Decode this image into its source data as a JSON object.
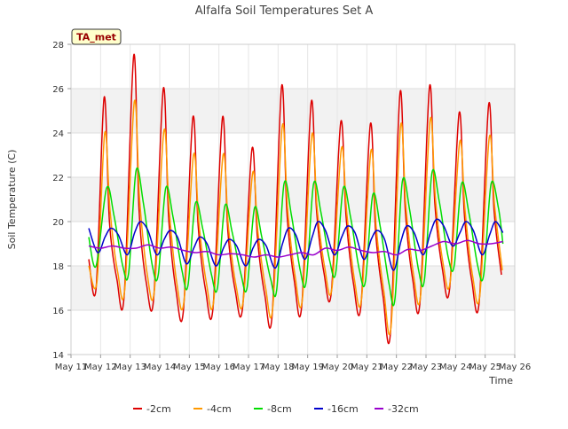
{
  "chart_data": {
    "type": "line",
    "title": "Alfalfa Soil Temperatures Set A",
    "xlabel": "Time",
    "ylabel": "Soil Temperature (C)",
    "badge": "TA_met",
    "ylim": [
      14,
      28
    ],
    "yticks": [
      14,
      16,
      18,
      20,
      22,
      24,
      26,
      28
    ],
    "xlim": [
      0,
      15
    ],
    "xticks": [
      {
        "v": 0,
        "label": "May 11"
      },
      {
        "v": 1,
        "label": "May 12"
      },
      {
        "v": 2,
        "label": "May 13"
      },
      {
        "v": 3,
        "label": "May 14"
      },
      {
        "v": 4,
        "label": "May 15"
      },
      {
        "v": 5,
        "label": "May 16"
      },
      {
        "v": 6,
        "label": "May 17"
      },
      {
        "v": 7,
        "label": "May 18"
      },
      {
        "v": 8,
        "label": "May 19"
      },
      {
        "v": 9,
        "label": "May 20"
      },
      {
        "v": 10,
        "label": "May 21"
      },
      {
        "v": 11,
        "label": "May 22"
      },
      {
        "v": 12,
        "label": "May 23"
      },
      {
        "v": 13,
        "label": "May 24"
      },
      {
        "v": 14,
        "label": "May 25"
      },
      {
        "v": 15,
        "label": "May 26"
      }
    ],
    "x_unit": "days since May 11",
    "grid": true,
    "legend_position": "bottom",
    "series": [
      {
        "name": "-2cm",
        "color": "#dd0000",
        "points": [
          [
            0.6,
            18.3
          ],
          [
            0.85,
            17.0
          ],
          [
            1.12,
            25.6
          ],
          [
            1.3,
            20.0
          ],
          [
            1.55,
            17.4
          ],
          [
            1.8,
            16.7
          ],
          [
            2.12,
            27.5
          ],
          [
            2.3,
            20.5
          ],
          [
            2.55,
            17.2
          ],
          [
            2.8,
            16.6
          ],
          [
            3.12,
            26.0
          ],
          [
            3.3,
            20.2
          ],
          [
            3.55,
            16.9
          ],
          [
            3.8,
            16.0
          ],
          [
            4.12,
            24.7
          ],
          [
            4.3,
            19.8
          ],
          [
            4.55,
            16.9
          ],
          [
            4.8,
            16.1
          ],
          [
            5.12,
            24.7
          ],
          [
            5.3,
            19.6
          ],
          [
            5.55,
            16.9
          ],
          [
            5.8,
            16.1
          ],
          [
            6.12,
            23.3
          ],
          [
            6.3,
            19.3
          ],
          [
            6.55,
            16.7
          ],
          [
            6.8,
            15.8
          ],
          [
            7.12,
            26.1
          ],
          [
            7.3,
            20.4
          ],
          [
            7.55,
            17.3
          ],
          [
            7.8,
            16.2
          ],
          [
            8.12,
            25.4
          ],
          [
            8.3,
            20.5
          ],
          [
            8.55,
            17.7
          ],
          [
            8.8,
            16.8
          ],
          [
            9.12,
            24.5
          ],
          [
            9.3,
            20.2
          ],
          [
            9.55,
            17.2
          ],
          [
            9.8,
            16.2
          ],
          [
            10.12,
            24.4
          ],
          [
            10.3,
            19.5
          ],
          [
            10.55,
            16.6
          ],
          [
            10.8,
            15.0
          ],
          [
            11.12,
            25.8
          ],
          [
            11.3,
            20.5
          ],
          [
            11.55,
            17.4
          ],
          [
            11.8,
            16.4
          ],
          [
            12.12,
            26.1
          ],
          [
            12.3,
            20.8
          ],
          [
            12.55,
            17.9
          ],
          [
            12.8,
            17.0
          ],
          [
            13.12,
            24.9
          ],
          [
            13.3,
            20.3
          ],
          [
            13.55,
            17.3
          ],
          [
            13.8,
            16.4
          ],
          [
            14.12,
            25.3
          ],
          [
            14.3,
            20.5
          ],
          [
            14.55,
            17.6
          ]
        ]
      },
      {
        "name": "-4cm",
        "color": "#ff9900",
        "points": [
          [
            0.6,
            18.0
          ],
          [
            0.88,
            17.3
          ],
          [
            1.14,
            24.0
          ],
          [
            1.32,
            20.5
          ],
          [
            1.58,
            17.7
          ],
          [
            1.82,
            17.0
          ],
          [
            2.14,
            25.4
          ],
          [
            2.32,
            21.0
          ],
          [
            2.58,
            17.6
          ],
          [
            2.82,
            16.9
          ],
          [
            3.14,
            24.1
          ],
          [
            3.32,
            20.5
          ],
          [
            3.58,
            17.2
          ],
          [
            3.82,
            16.4
          ],
          [
            4.14,
            23.0
          ],
          [
            4.32,
            20.0
          ],
          [
            4.58,
            17.2
          ],
          [
            4.82,
            16.4
          ],
          [
            5.14,
            23.0
          ],
          [
            5.32,
            19.8
          ],
          [
            5.58,
            17.1
          ],
          [
            5.82,
            16.4
          ],
          [
            6.14,
            22.2
          ],
          [
            6.32,
            19.5
          ],
          [
            6.58,
            17.0
          ],
          [
            6.82,
            16.1
          ],
          [
            7.14,
            24.3
          ],
          [
            7.32,
            20.6
          ],
          [
            7.58,
            17.5
          ],
          [
            7.82,
            16.5
          ],
          [
            8.14,
            23.9
          ],
          [
            8.32,
            20.6
          ],
          [
            8.58,
            17.9
          ],
          [
            8.82,
            17.0
          ],
          [
            9.14,
            23.3
          ],
          [
            9.32,
            20.4
          ],
          [
            9.58,
            17.4
          ],
          [
            9.82,
            16.5
          ],
          [
            10.14,
            23.2
          ],
          [
            10.32,
            19.7
          ],
          [
            10.58,
            16.8
          ],
          [
            10.82,
            15.3
          ],
          [
            11.14,
            24.3
          ],
          [
            11.32,
            20.7
          ],
          [
            11.58,
            17.6
          ],
          [
            11.82,
            16.7
          ],
          [
            12.14,
            24.6
          ],
          [
            12.32,
            21.0
          ],
          [
            12.58,
            18.1
          ],
          [
            12.82,
            17.3
          ],
          [
            13.14,
            23.6
          ],
          [
            13.32,
            20.5
          ],
          [
            13.58,
            17.5
          ],
          [
            13.82,
            16.7
          ],
          [
            14.14,
            23.8
          ],
          [
            14.32,
            20.7
          ],
          [
            14.58,
            17.8
          ]
        ]
      },
      {
        "name": "-8cm",
        "color": "#00dd00",
        "points": [
          [
            0.6,
            19.3
          ],
          [
            0.85,
            18.0
          ],
          [
            1.2,
            21.5
          ],
          [
            1.45,
            20.3
          ],
          [
            1.75,
            18.0
          ],
          [
            1.95,
            17.7
          ],
          [
            2.2,
            22.3
          ],
          [
            2.45,
            20.8
          ],
          [
            2.75,
            18.0
          ],
          [
            2.95,
            17.6
          ],
          [
            3.2,
            21.5
          ],
          [
            3.45,
            20.2
          ],
          [
            3.75,
            17.8
          ],
          [
            3.95,
            17.1
          ],
          [
            4.2,
            20.8
          ],
          [
            4.45,
            19.7
          ],
          [
            4.75,
            17.6
          ],
          [
            4.95,
            17.0
          ],
          [
            5.2,
            20.7
          ],
          [
            5.45,
            19.5
          ],
          [
            5.75,
            17.6
          ],
          [
            5.95,
            17.0
          ],
          [
            6.2,
            20.6
          ],
          [
            6.45,
            19.3
          ],
          [
            6.75,
            17.4
          ],
          [
            6.95,
            16.9
          ],
          [
            7.2,
            21.7
          ],
          [
            7.45,
            20.3
          ],
          [
            7.75,
            17.8
          ],
          [
            7.95,
            17.3
          ],
          [
            8.2,
            21.7
          ],
          [
            8.45,
            20.4
          ],
          [
            8.75,
            18.2
          ],
          [
            8.95,
            17.7
          ],
          [
            9.2,
            21.5
          ],
          [
            9.45,
            20.2
          ],
          [
            9.75,
            17.8
          ],
          [
            9.95,
            17.3
          ],
          [
            10.2,
            21.2
          ],
          [
            10.45,
            19.8
          ],
          [
            10.75,
            17.2
          ],
          [
            10.95,
            16.5
          ],
          [
            11.2,
            21.8
          ],
          [
            11.45,
            20.5
          ],
          [
            11.75,
            17.8
          ],
          [
            11.95,
            17.4
          ],
          [
            12.2,
            22.2
          ],
          [
            12.45,
            20.9
          ],
          [
            12.75,
            18.4
          ],
          [
            12.95,
            18.0
          ],
          [
            13.2,
            21.7
          ],
          [
            13.45,
            20.4
          ],
          [
            13.75,
            18.0
          ],
          [
            13.95,
            17.6
          ],
          [
            14.2,
            21.7
          ],
          [
            14.45,
            20.6
          ],
          [
            14.6,
            19.0
          ]
        ]
      },
      {
        "name": "-16cm",
        "color": "#0000cc",
        "points": [
          [
            0.6,
            19.7
          ],
          [
            0.9,
            18.6
          ],
          [
            1.15,
            19.3
          ],
          [
            1.35,
            19.7
          ],
          [
            1.6,
            19.4
          ],
          [
            1.9,
            18.5
          ],
          [
            2.15,
            19.5
          ],
          [
            2.35,
            20.0
          ],
          [
            2.6,
            19.6
          ],
          [
            2.9,
            18.5
          ],
          [
            3.15,
            19.2
          ],
          [
            3.35,
            19.6
          ],
          [
            3.6,
            19.3
          ],
          [
            3.9,
            18.1
          ],
          [
            4.15,
            18.8
          ],
          [
            4.35,
            19.3
          ],
          [
            4.6,
            19.0
          ],
          [
            4.9,
            18.0
          ],
          [
            5.15,
            18.8
          ],
          [
            5.35,
            19.2
          ],
          [
            5.6,
            18.9
          ],
          [
            5.9,
            18.0
          ],
          [
            6.15,
            18.8
          ],
          [
            6.35,
            19.2
          ],
          [
            6.6,
            18.9
          ],
          [
            6.9,
            17.9
          ],
          [
            7.15,
            19.0
          ],
          [
            7.35,
            19.7
          ],
          [
            7.6,
            19.4
          ],
          [
            7.9,
            18.3
          ],
          [
            8.15,
            19.3
          ],
          [
            8.35,
            20.0
          ],
          [
            8.6,
            19.6
          ],
          [
            8.9,
            18.5
          ],
          [
            9.15,
            19.3
          ],
          [
            9.35,
            19.8
          ],
          [
            9.6,
            19.5
          ],
          [
            9.9,
            18.3
          ],
          [
            10.15,
            19.2
          ],
          [
            10.35,
            19.6
          ],
          [
            10.6,
            19.2
          ],
          [
            10.9,
            17.8
          ],
          [
            11.15,
            19.1
          ],
          [
            11.35,
            19.8
          ],
          [
            11.6,
            19.5
          ],
          [
            11.9,
            18.5
          ],
          [
            12.15,
            19.5
          ],
          [
            12.35,
            20.1
          ],
          [
            12.6,
            19.8
          ],
          [
            12.9,
            18.9
          ],
          [
            13.15,
            19.5
          ],
          [
            13.35,
            20.0
          ],
          [
            13.6,
            19.6
          ],
          [
            13.9,
            18.5
          ],
          [
            14.15,
            19.4
          ],
          [
            14.35,
            20.0
          ],
          [
            14.6,
            19.5
          ]
        ]
      },
      {
        "name": "-32cm",
        "color": "#9900cc",
        "points": [
          [
            0.6,
            18.9
          ],
          [
            1.0,
            18.8
          ],
          [
            1.4,
            18.9
          ],
          [
            1.8,
            18.8
          ],
          [
            2.2,
            18.8
          ],
          [
            2.6,
            18.95
          ],
          [
            3.0,
            18.8
          ],
          [
            3.4,
            18.85
          ],
          [
            3.8,
            18.7
          ],
          [
            4.2,
            18.6
          ],
          [
            4.6,
            18.65
          ],
          [
            5.0,
            18.5
          ],
          [
            5.4,
            18.55
          ],
          [
            5.8,
            18.5
          ],
          [
            6.2,
            18.4
          ],
          [
            6.6,
            18.5
          ],
          [
            7.0,
            18.4
          ],
          [
            7.4,
            18.5
          ],
          [
            7.8,
            18.6
          ],
          [
            8.2,
            18.5
          ],
          [
            8.6,
            18.8
          ],
          [
            9.0,
            18.7
          ],
          [
            9.4,
            18.85
          ],
          [
            9.8,
            18.7
          ],
          [
            10.2,
            18.6
          ],
          [
            10.6,
            18.65
          ],
          [
            11.0,
            18.5
          ],
          [
            11.4,
            18.75
          ],
          [
            11.8,
            18.7
          ],
          [
            12.2,
            18.9
          ],
          [
            12.6,
            19.1
          ],
          [
            13.0,
            19.0
          ],
          [
            13.4,
            19.15
          ],
          [
            13.8,
            19.0
          ],
          [
            14.2,
            19.0
          ],
          [
            14.6,
            19.1
          ]
        ]
      }
    ]
  }
}
